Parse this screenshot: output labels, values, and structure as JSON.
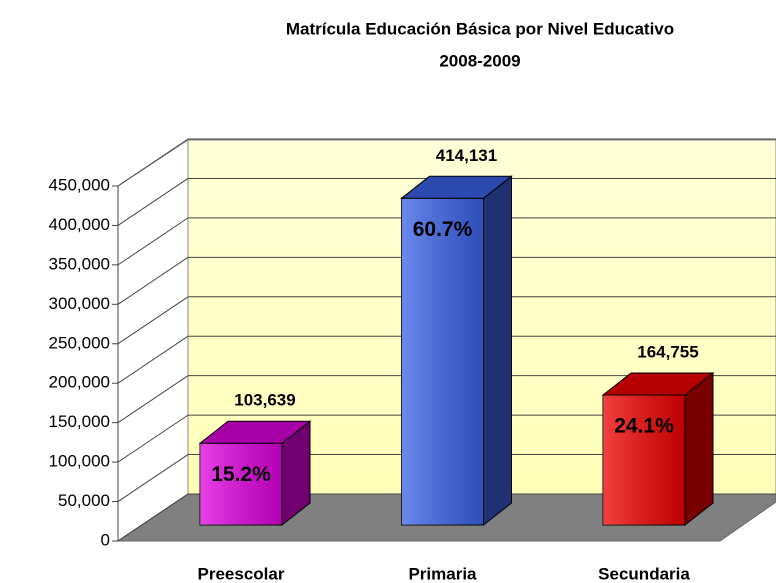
{
  "chart_data": {
    "type": "bar3d",
    "title": "Matrícula Educación Básica por Nivel Educativo",
    "subtitle": "2008-2009",
    "categories": [
      "Preescolar",
      "Primaria",
      "Secundaria"
    ],
    "values": [
      103639,
      414131,
      164755
    ],
    "value_labels": [
      "103,639",
      "414,131",
      "164,755"
    ],
    "percent_labels": [
      "15.2%",
      "60.7%",
      "24.1%"
    ],
    "colors": [
      "#e000e0",
      "#3a62e8",
      "#f00000"
    ],
    "ylim": [
      0,
      450000
    ],
    "yticks": [
      0,
      {
        "value": 50000,
        "label": "50,000"
      },
      {
        "value": 100000,
        "label": "100,000"
      },
      {
        "value": 150000,
        "label": "150,000"
      },
      {
        "value": 200000,
        "label": "200,000"
      },
      {
        "value": 250000,
        "label": "250,000"
      },
      {
        "value": 300000,
        "label": "300,000"
      },
      {
        "value": 350000,
        "label": "350,000"
      },
      {
        "value": 400000,
        "label": "400,000"
      },
      {
        "value": 450000,
        "label": "450,000"
      }
    ],
    "grid": true
  }
}
